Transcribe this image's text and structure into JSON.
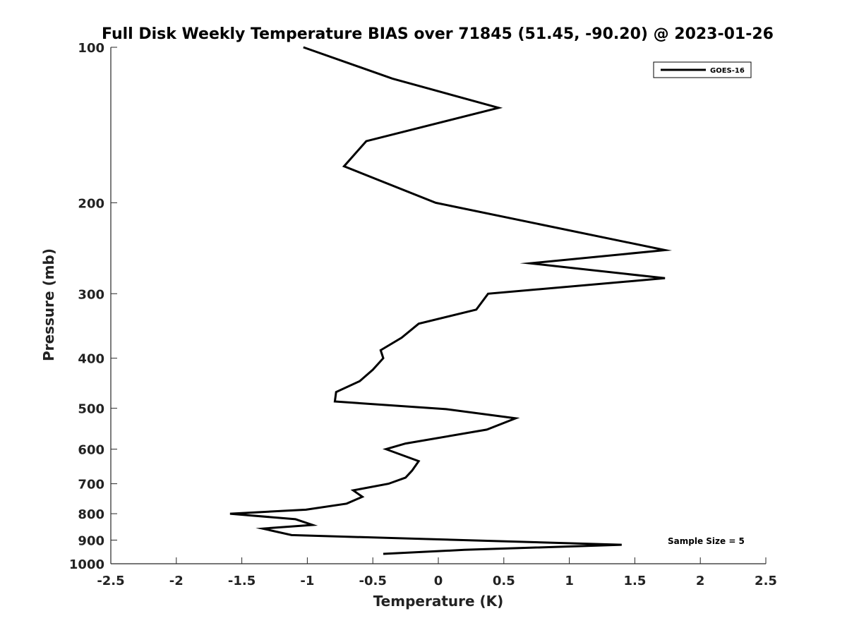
{
  "chart_data": {
    "type": "line",
    "title": "Full Disk Weekly Temperature BIAS over 71845 (51.45, -90.20) @ 2023-01-26",
    "xlabel": "Temperature (K)",
    "ylabel": "Pressure (mb)",
    "xlim": [
      -2.5,
      2.5
    ],
    "ylim": [
      100,
      1000
    ],
    "y_scale": "log",
    "y_reversed": true,
    "grid": false,
    "x_ticks": [
      -2.5,
      -2,
      -1.5,
      -1,
      -0.5,
      0,
      0.5,
      1,
      1.5,
      2,
      2.5
    ],
    "x_tick_labels": [
      "-2.5",
      "-2",
      "-1.5",
      "-1",
      "-0.5",
      "0",
      "0.5",
      "1",
      "1.5",
      "2",
      "2.5"
    ],
    "y_ticks": [
      100,
      200,
      300,
      400,
      500,
      600,
      700,
      800,
      900,
      1000
    ],
    "y_tick_labels": [
      "100",
      "200",
      "300",
      "400",
      "500",
      "600",
      "700",
      "800",
      "900",
      "1000"
    ],
    "legend": {
      "position": "top-right",
      "entries": [
        "GOES-16"
      ]
    },
    "annotations": [
      "Sample Size = 5"
    ],
    "series": [
      {
        "name": "GOES-16",
        "color": "#000000",
        "points": [
          {
            "x": -1.03,
            "p": 100
          },
          {
            "x": -0.35,
            "p": 115
          },
          {
            "x": 0.46,
            "p": 131
          },
          {
            "x": -0.55,
            "p": 152
          },
          {
            "x": -0.72,
            "p": 170
          },
          {
            "x": -0.02,
            "p": 200
          },
          {
            "x": 1.73,
            "p": 247
          },
          {
            "x": 0.7,
            "p": 262
          },
          {
            "x": 1.73,
            "p": 280
          },
          {
            "x": 0.38,
            "p": 300
          },
          {
            "x": 0.29,
            "p": 322
          },
          {
            "x": -0.15,
            "p": 343
          },
          {
            "x": -0.28,
            "p": 365
          },
          {
            "x": -0.44,
            "p": 386
          },
          {
            "x": -0.42,
            "p": 400
          },
          {
            "x": -0.5,
            "p": 421
          },
          {
            "x": -0.6,
            "p": 443
          },
          {
            "x": -0.78,
            "p": 465
          },
          {
            "x": -0.79,
            "p": 485
          },
          {
            "x": 0.06,
            "p": 502
          },
          {
            "x": 0.59,
            "p": 523
          },
          {
            "x": 0.37,
            "p": 550
          },
          {
            "x": -0.25,
            "p": 585
          },
          {
            "x": -0.4,
            "p": 600
          },
          {
            "x": -0.15,
            "p": 633
          },
          {
            "x": -0.2,
            "p": 660
          },
          {
            "x": -0.25,
            "p": 681
          },
          {
            "x": -0.38,
            "p": 700
          },
          {
            "x": -0.65,
            "p": 721
          },
          {
            "x": -0.58,
            "p": 742
          },
          {
            "x": -0.7,
            "p": 765
          },
          {
            "x": -1.01,
            "p": 786
          },
          {
            "x": -1.59,
            "p": 800
          },
          {
            "x": -1.09,
            "p": 820
          },
          {
            "x": -0.96,
            "p": 841
          },
          {
            "x": -1.34,
            "p": 855
          },
          {
            "x": -1.12,
            "p": 880
          },
          {
            "x": 1.4,
            "p": 919
          },
          {
            "x": 0.2,
            "p": 940
          },
          {
            "x": -0.42,
            "p": 957
          }
        ]
      }
    ]
  }
}
